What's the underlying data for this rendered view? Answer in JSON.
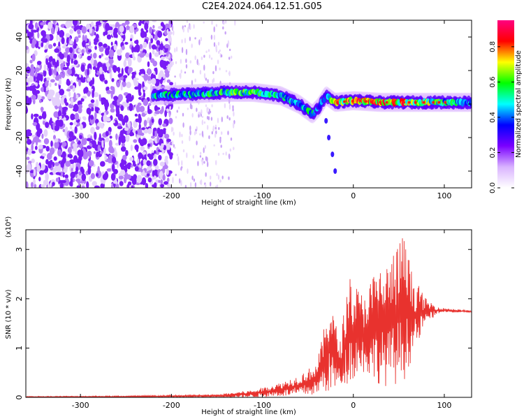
{
  "title": "C2E4.2024.064.12.51.G05",
  "chart_data": [
    {
      "type": "heatmap",
      "xlabel": "Height of straight line (km)",
      "ylabel": "Frequency (Hz)",
      "xlim": [
        -360,
        130
      ],
      "ylim": [
        -50,
        50
      ],
      "xticks": [
        -300,
        -200,
        -100,
        0,
        100
      ],
      "yticks": [
        -40,
        -20,
        0,
        20,
        40
      ],
      "colorbar": {
        "label": "Normalized spectral amplitude",
        "range": [
          0,
          0.95
        ],
        "ticks": [
          "0.0",
          "0.2",
          "0.4",
          "0.6",
          "0.8"
        ],
        "colors": [
          "#ffffff",
          "#d9b3ff",
          "#7a00ff",
          "#0000ff",
          "#00ffff",
          "#00ff00",
          "#ffff00",
          "#ff0000",
          "#ff0080"
        ]
      },
      "ridge": [
        {
          "x": -220,
          "y": 5,
          "amp": 0.5
        },
        {
          "x": -180,
          "y": 6,
          "amp": 0.5
        },
        {
          "x": -140,
          "y": 7,
          "amp": 0.55
        },
        {
          "x": -110,
          "y": 7,
          "amp": 0.6
        },
        {
          "x": -80,
          "y": 5,
          "amp": 0.5
        },
        {
          "x": -60,
          "y": 0,
          "amp": 0.45
        },
        {
          "x": -45,
          "y": -6,
          "amp": 0.55
        },
        {
          "x": -38,
          "y": -2,
          "amp": 0.4
        },
        {
          "x": -30,
          "y": 5,
          "amp": 0.35
        },
        {
          "x": -20,
          "y": 1,
          "amp": 0.75
        },
        {
          "x": 0,
          "y": 2,
          "amp": 0.8
        },
        {
          "x": 30,
          "y": 1,
          "amp": 0.8
        },
        {
          "x": 60,
          "y": 1,
          "amp": 0.75
        },
        {
          "x": 100,
          "y": 1,
          "amp": 0.55
        },
        {
          "x": 130,
          "y": 1,
          "amp": 0.45
        }
      ],
      "noise_region": [
        -360,
        -210
      ],
      "tail": [
        {
          "x": -30,
          "y": -10
        },
        {
          "x": -27,
          "y": -20
        },
        {
          "x": -23,
          "y": -30
        },
        {
          "x": -20,
          "y": -40
        }
      ]
    },
    {
      "type": "line",
      "xlabel": "Height of straight line (km)",
      "ylabel": "SNR (10 * v/v)",
      "yscale_label": "(x10⁴)",
      "xlim": [
        -360,
        130
      ],
      "ylim": [
        0,
        3.4
      ],
      "xticks": [
        -300,
        -200,
        -100,
        0,
        100
      ],
      "yticks": [
        0,
        1,
        2,
        3
      ],
      "color": "#e8322e",
      "envelope": [
        {
          "x": -360,
          "lo": 0.0,
          "hi": 0.02
        },
        {
          "x": -250,
          "lo": 0.0,
          "hi": 0.03
        },
        {
          "x": -150,
          "lo": 0.0,
          "hi": 0.06
        },
        {
          "x": -110,
          "lo": 0.0,
          "hi": 0.15
        },
        {
          "x": -80,
          "lo": 0.02,
          "hi": 0.3
        },
        {
          "x": -60,
          "lo": 0.02,
          "hi": 0.45
        },
        {
          "x": -40,
          "lo": 0.05,
          "hi": 0.7
        },
        {
          "x": -25,
          "lo": 0.1,
          "hi": 2.05
        },
        {
          "x": -15,
          "lo": 0.15,
          "hi": 1.1
        },
        {
          "x": -5,
          "lo": 0.3,
          "hi": 2.5
        },
        {
          "x": 10,
          "lo": 0.5,
          "hi": 2.1
        },
        {
          "x": 25,
          "lo": 0.3,
          "hi": 2.6
        },
        {
          "x": 40,
          "lo": 0.2,
          "hi": 2.8
        },
        {
          "x": 55,
          "lo": 0.3,
          "hi": 3.35
        },
        {
          "x": 65,
          "lo": 0.8,
          "hi": 2.5
        },
        {
          "x": 80,
          "lo": 1.5,
          "hi": 2.0
        },
        {
          "x": 95,
          "lo": 1.72,
          "hi": 1.82
        },
        {
          "x": 130,
          "lo": 1.72,
          "hi": 1.76
        }
      ]
    }
  ]
}
